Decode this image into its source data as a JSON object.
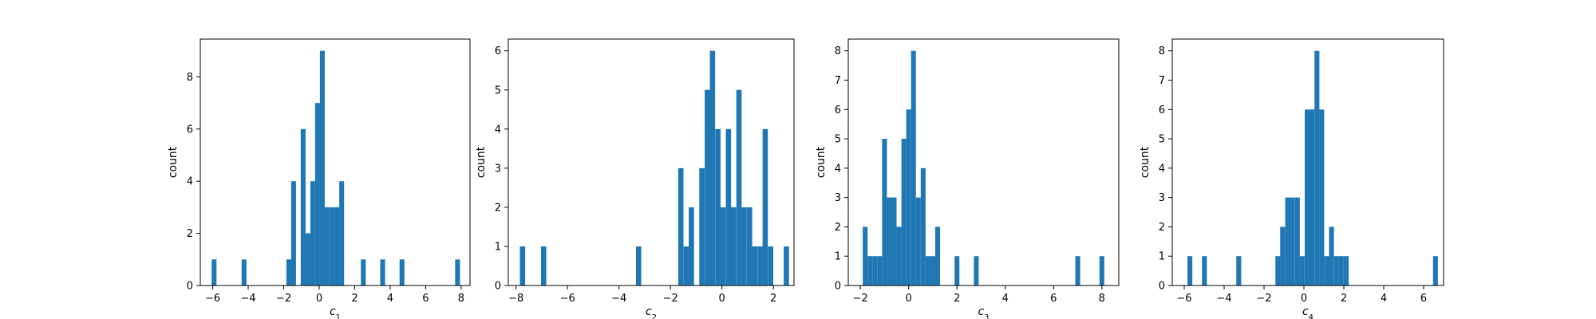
{
  "chart_data": [
    {
      "type": "histogram",
      "xlabel": "c",
      "xlabel_sub": "1",
      "ylabel": "count",
      "bar_color": "#1f77b4",
      "bin_width": 0.273,
      "xlim": [
        -6.7,
        8.5
      ],
      "ylim": [
        0,
        9.45
      ],
      "xticks": [
        -6,
        -4,
        -2,
        0,
        2,
        4,
        6,
        8
      ],
      "xtick_labels": [
        "−6",
        "−4",
        "−2",
        "0",
        "2",
        "4",
        "6",
        "8"
      ],
      "yticks": [
        0,
        2,
        4,
        6,
        8
      ],
      "ytick_labels": [
        "0",
        "2",
        "4",
        "6",
        "8"
      ],
      "bins": [
        {
          "x": -6.06,
          "count": 1
        },
        {
          "x": -4.37,
          "count": 1
        },
        {
          "x": -1.85,
          "count": 1
        },
        {
          "x": -1.58,
          "count": 4
        },
        {
          "x": -1.04,
          "count": 6
        },
        {
          "x": -0.77,
          "count": 2
        },
        {
          "x": -0.5,
          "count": 4
        },
        {
          "x": -0.23,
          "count": 7
        },
        {
          "x": 0.04,
          "count": 9
        },
        {
          "x": 0.31,
          "count": 3
        },
        {
          "x": 0.59,
          "count": 3
        },
        {
          "x": 0.86,
          "count": 3
        },
        {
          "x": 1.13,
          "count": 4
        },
        {
          "x": 2.35,
          "count": 1
        },
        {
          "x": 3.44,
          "count": 1
        },
        {
          "x": 4.53,
          "count": 1
        },
        {
          "x": 7.66,
          "count": 1
        }
      ]
    },
    {
      "type": "histogram",
      "xlabel": "c",
      "xlabel_sub": "2",
      "ylabel": "count",
      "bar_color": "#1f77b4",
      "bin_width": 0.205,
      "xlim": [
        -8.3,
        2.8
      ],
      "ylim": [
        0,
        6.3
      ],
      "xticks": [
        -8,
        -6,
        -4,
        -2,
        0,
        2
      ],
      "xtick_labels": [
        "−8",
        "−6",
        "−4",
        "−2",
        "0",
        "2"
      ],
      "yticks": [
        0,
        1,
        2,
        3,
        4,
        5,
        6
      ],
      "ytick_labels": [
        "0",
        "1",
        "2",
        "3",
        "4",
        "5",
        "6"
      ],
      "bins": [
        {
          "x": -7.85,
          "count": 1
        },
        {
          "x": -7.03,
          "count": 1
        },
        {
          "x": -3.34,
          "count": 1
        },
        {
          "x": -1.7,
          "count": 3
        },
        {
          "x": -1.49,
          "count": 1
        },
        {
          "x": -1.29,
          "count": 2
        },
        {
          "x": -0.88,
          "count": 3
        },
        {
          "x": -0.67,
          "count": 5
        },
        {
          "x": -0.47,
          "count": 6
        },
        {
          "x": -0.26,
          "count": 4
        },
        {
          "x": -0.06,
          "count": 2
        },
        {
          "x": 0.15,
          "count": 4
        },
        {
          "x": 0.35,
          "count": 2
        },
        {
          "x": 0.56,
          "count": 5
        },
        {
          "x": 0.76,
          "count": 2
        },
        {
          "x": 0.97,
          "count": 2
        },
        {
          "x": 1.17,
          "count": 1
        },
        {
          "x": 1.38,
          "count": 1
        },
        {
          "x": 1.58,
          "count": 4
        },
        {
          "x": 1.79,
          "count": 1
        },
        {
          "x": 2.4,
          "count": 1
        }
      ]
    },
    {
      "type": "histogram",
      "xlabel": "c",
      "xlabel_sub": "3",
      "ylabel": "count",
      "bar_color": "#1f77b4",
      "bin_width": 0.2,
      "xlim": [
        -2.5,
        8.7
      ],
      "ylim": [
        0,
        8.4
      ],
      "xticks": [
        -2,
        0,
        2,
        4,
        6,
        8
      ],
      "xtick_labels": [
        "−2",
        "0",
        "2",
        "4",
        "6",
        "8"
      ],
      "yticks": [
        0,
        1,
        2,
        3,
        4,
        5,
        6,
        7,
        8
      ],
      "ytick_labels": [
        "0",
        "1",
        "2",
        "3",
        "4",
        "5",
        "6",
        "7",
        "8"
      ],
      "bins": [
        {
          "x": -1.9,
          "count": 2
        },
        {
          "x": -1.7,
          "count": 1
        },
        {
          "x": -1.5,
          "count": 1
        },
        {
          "x": -1.3,
          "count": 1
        },
        {
          "x": -1.1,
          "count": 5
        },
        {
          "x": -0.9,
          "count": 3
        },
        {
          "x": -0.7,
          "count": 3
        },
        {
          "x": -0.5,
          "count": 2
        },
        {
          "x": -0.3,
          "count": 5
        },
        {
          "x": -0.1,
          "count": 6
        },
        {
          "x": 0.1,
          "count": 8
        },
        {
          "x": 0.3,
          "count": 3
        },
        {
          "x": 0.5,
          "count": 4
        },
        {
          "x": 0.7,
          "count": 1
        },
        {
          "x": 0.9,
          "count": 1
        },
        {
          "x": 1.1,
          "count": 2
        },
        {
          "x": 1.9,
          "count": 1
        },
        {
          "x": 2.7,
          "count": 1
        },
        {
          "x": 6.9,
          "count": 1
        },
        {
          "x": 7.9,
          "count": 1
        }
      ]
    },
    {
      "type": "histogram",
      "xlabel": "c",
      "xlabel_sub": "4",
      "ylabel": "count",
      "bar_color": "#1f77b4",
      "bin_width": 0.245,
      "xlim": [
        -6.6,
        7.0
      ],
      "ylim": [
        0,
        8.4
      ],
      "xticks": [
        -6,
        -4,
        -2,
        0,
        2,
        4,
        6
      ],
      "xtick_labels": [
        "−6",
        "−4",
        "−2",
        "0",
        "2",
        "4",
        "6"
      ],
      "yticks": [
        0,
        1,
        2,
        3,
        4,
        5,
        6,
        7,
        8
      ],
      "ytick_labels": [
        "0",
        "1",
        "2",
        "3",
        "4",
        "5",
        "6",
        "7",
        "8"
      ],
      "bins": [
        {
          "x": -5.84,
          "count": 1
        },
        {
          "x": -5.11,
          "count": 1
        },
        {
          "x": -3.39,
          "count": 1
        },
        {
          "x": -1.43,
          "count": 1
        },
        {
          "x": -1.19,
          "count": 2
        },
        {
          "x": -0.94,
          "count": 3
        },
        {
          "x": -0.7,
          "count": 3
        },
        {
          "x": -0.45,
          "count": 3
        },
        {
          "x": -0.21,
          "count": 1
        },
        {
          "x": 0.04,
          "count": 6
        },
        {
          "x": 0.28,
          "count": 6
        },
        {
          "x": 0.53,
          "count": 8
        },
        {
          "x": 0.77,
          "count": 6
        },
        {
          "x": 1.02,
          "count": 1
        },
        {
          "x": 1.26,
          "count": 2
        },
        {
          "x": 1.51,
          "count": 1
        },
        {
          "x": 1.75,
          "count": 1
        },
        {
          "x": 2.0,
          "count": 1
        },
        {
          "x": 6.47,
          "count": 1
        }
      ]
    }
  ]
}
